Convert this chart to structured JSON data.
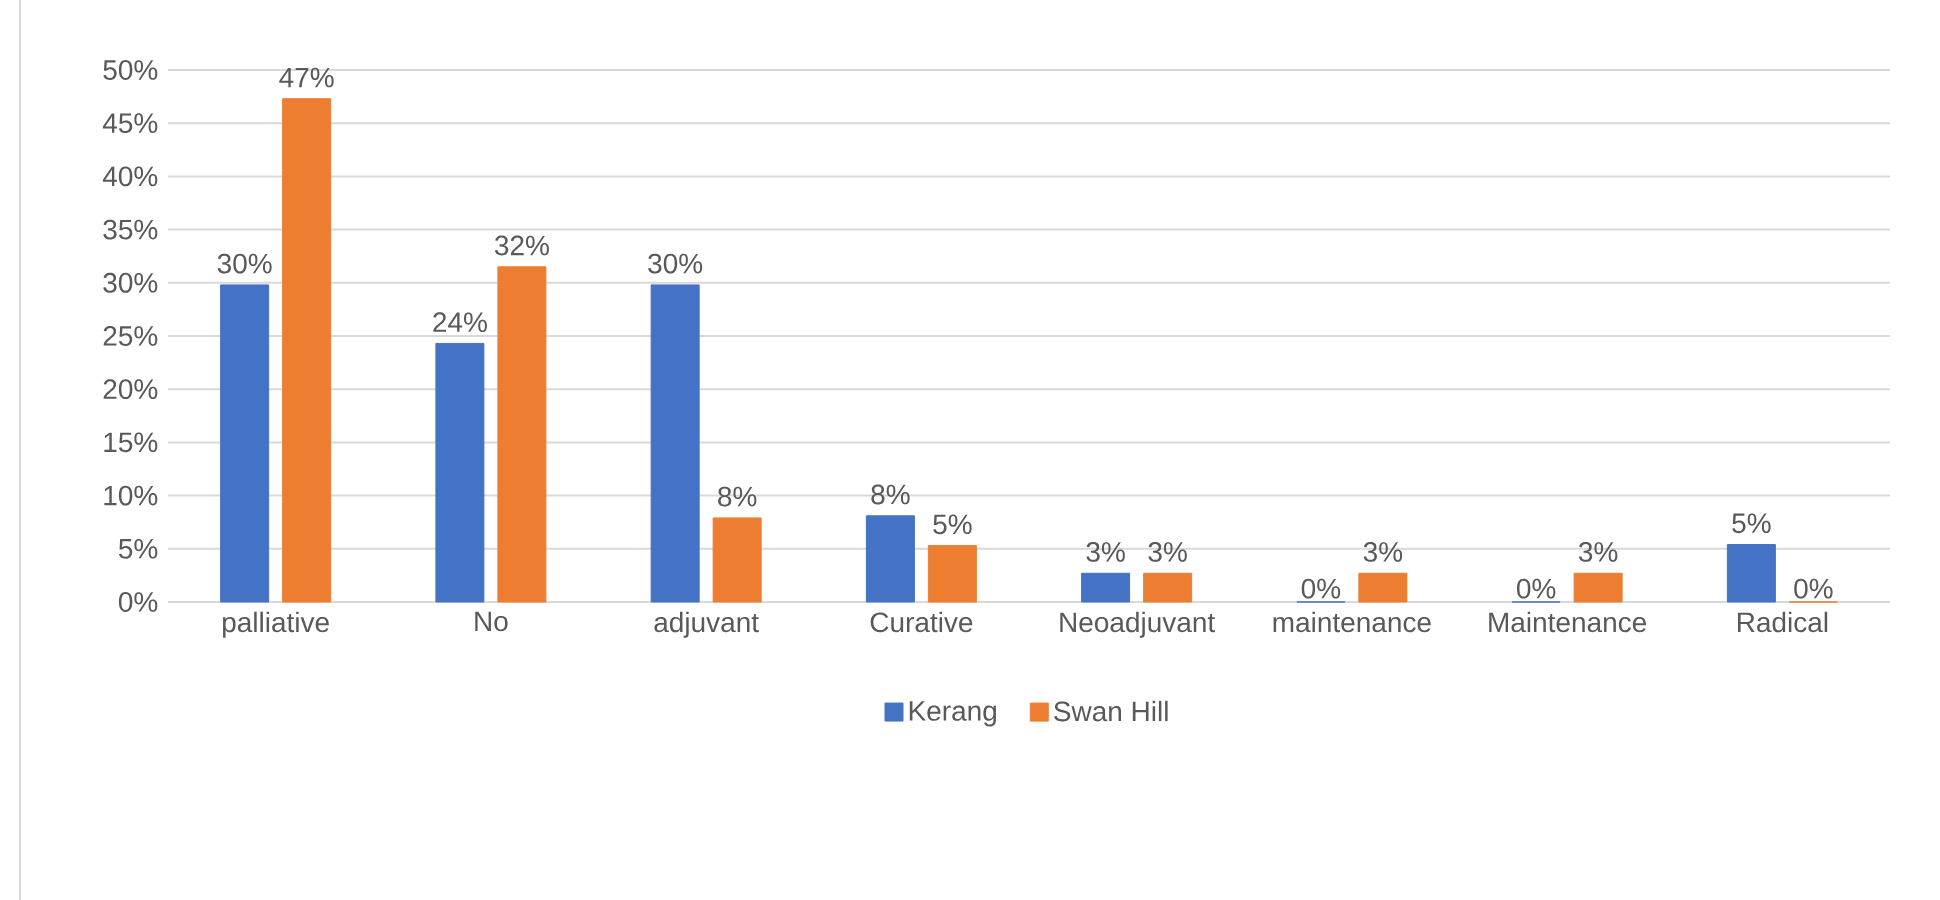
{
  "chart_data": {
    "type": "bar",
    "categories": [
      "palliative",
      "No",
      "adjuvant",
      "Curative",
      "Neoadjuvant",
      "maintenance",
      "Maintenance",
      "Radical"
    ],
    "series": [
      {
        "name": "Kerang",
        "color": "#4472c4",
        "values": [
          29.8,
          24.3,
          29.8,
          8.1,
          2.7,
          0,
          0,
          5.4
        ],
        "value_labels": [
          "30%",
          "24%",
          "30%",
          "8%",
          "3%",
          "0%",
          "0%",
          "5%"
        ]
      },
      {
        "name": "Swan Hill",
        "color": "#ed7d31",
        "values": [
          47.3,
          31.5,
          7.9,
          5.3,
          2.7,
          2.7,
          2.7,
          0
        ],
        "value_labels": [
          "47%",
          "32%",
          "8%",
          "5%",
          "3%",
          "3%",
          "3%",
          "0%"
        ]
      }
    ],
    "ylim": [
      0,
      50
    ],
    "yticks": [
      {
        "value": 0,
        "label": "0%"
      },
      {
        "value": 5,
        "label": "5%"
      },
      {
        "value": 10,
        "label": "10%"
      },
      {
        "value": 15,
        "label": "15%"
      },
      {
        "value": 20,
        "label": "20%"
      },
      {
        "value": 25,
        "label": "25%"
      },
      {
        "value": 30,
        "label": "30%"
      },
      {
        "value": 35,
        "label": "35%"
      },
      {
        "value": 40,
        "label": "40%"
      },
      {
        "value": 45,
        "label": "45%"
      },
      {
        "value": 50,
        "label": "50%"
      }
    ],
    "grid": "y",
    "legend": "bottom"
  }
}
